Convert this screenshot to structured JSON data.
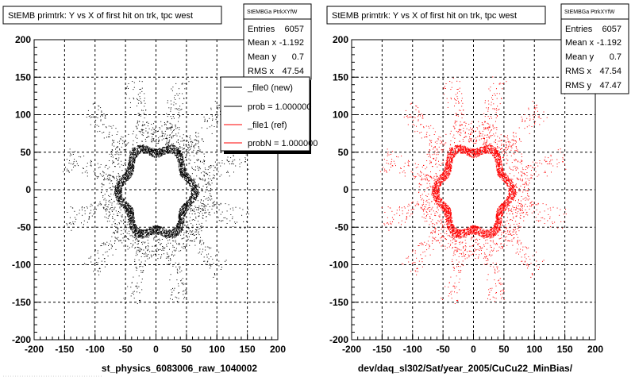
{
  "chart_data": [
    {
      "type": "scatter",
      "title": "StEMB primtrk: Y vs X of first hit on trk, tpc west",
      "xlabel": "st_physics_6083006_raw_1040002",
      "ylabel": "",
      "xlim": [
        -200,
        200
      ],
      "ylim": [
        -200,
        200
      ],
      "x_ticks": [
        "-200",
        "-150",
        "-100",
        "-50",
        "0",
        "50",
        "100",
        "150",
        "200"
      ],
      "y_ticks": [
        "200",
        "150",
        "100",
        "50",
        "0",
        "-50",
        "-100",
        "-150",
        "-200"
      ],
      "grid": true,
      "marker_color": "#000000",
      "stats": {
        "name": "StEMBGa PtrkXYfW",
        "rows": [
          {
            "label": "Entries",
            "value": "6057"
          },
          {
            "label": "Mean x",
            "value": "-1.192"
          },
          {
            "label": "Mean y",
            "value": "0.7"
          },
          {
            "label": "RMS x",
            "value": "47.54"
          }
        ]
      },
      "legend": {
        "placement": "top-right",
        "entries": [
          {
            "label": "_file0 (new)",
            "color": "#000000"
          },
          {
            "label": "prob = 1.000000",
            "color": "#000000"
          },
          {
            "label": "_file1 (ref)",
            "color": "#ff0000"
          },
          {
            "label": "probN = 1.000000",
            "color": "#ff0000"
          }
        ]
      }
    },
    {
      "type": "scatter",
      "title": "StEMB primtrk: Y vs X of first hit on trk, tpc west",
      "xlabel": "dev/daq_sl302/Sat/year_2005/CuCu22_MinBias/",
      "ylabel": "",
      "xlim": [
        -200,
        200
      ],
      "ylim": [
        -200,
        200
      ],
      "x_ticks": [
        "-200",
        "-150",
        "-100",
        "-50",
        "0",
        "50",
        "100",
        "150",
        "200"
      ],
      "y_ticks": [
        "200",
        "150",
        "100",
        "50",
        "0",
        "-50",
        "-100",
        "-150",
        "-200"
      ],
      "grid": true,
      "marker_color": "#ff0000",
      "stats": {
        "name": "StEMBGa PtrkXYfW",
        "rows": [
          {
            "label": "Entries",
            "value": "6057"
          },
          {
            "label": "Mean x",
            "value": "-1.192"
          },
          {
            "label": "Mean y",
            "value": "0.7"
          },
          {
            "label": "RMS x",
            "value": "47.54"
          },
          {
            "label": "RMS y",
            "value": "47.47"
          }
        ]
      }
    }
  ]
}
